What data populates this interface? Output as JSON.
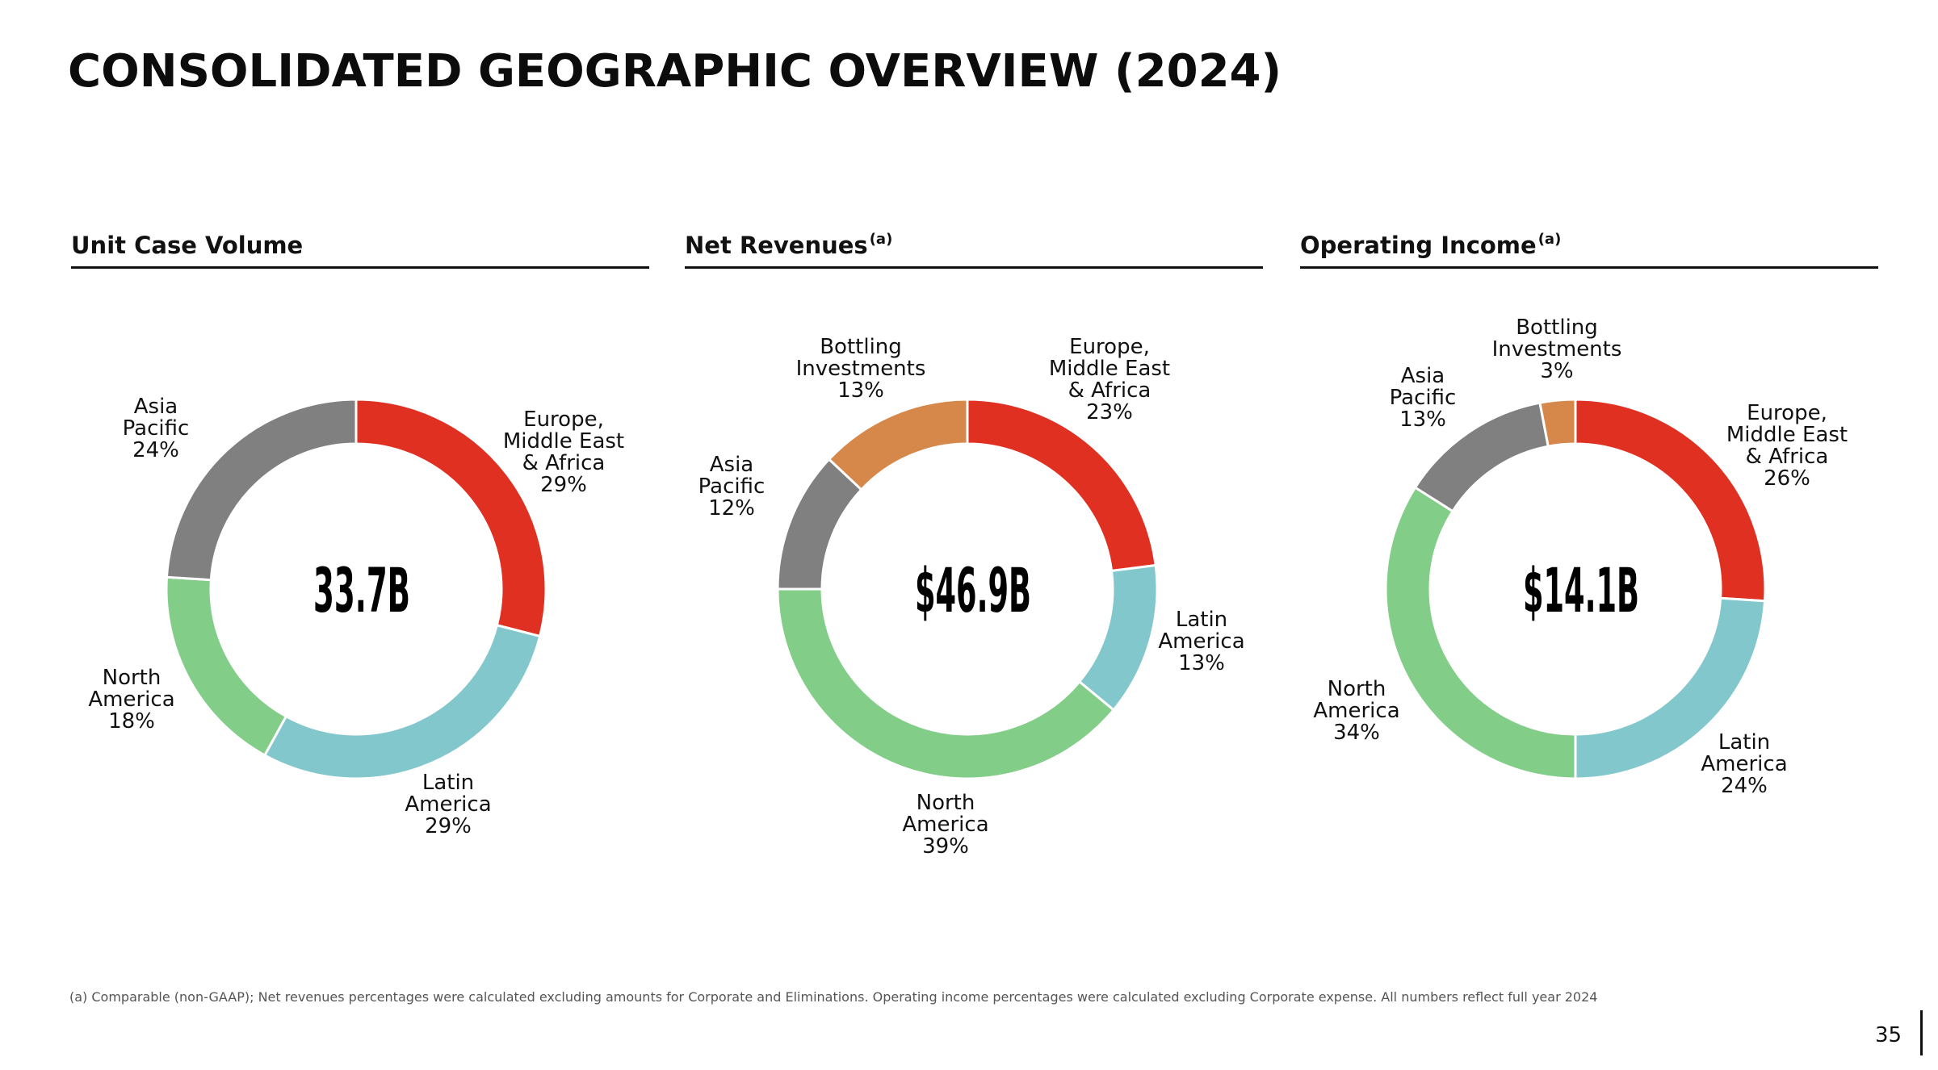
{
  "title": "CONSOLIDATED GEOGRAPHIC OVERVIEW (2024)",
  "colors": {
    "europe_middle_east_africa": "#e03022",
    "latin_america": "#82c7cc",
    "north_america": "#82cd87",
    "asia_pacific": "#808080",
    "bottling_investments": "#d6874a"
  },
  "chart_data": [
    {
      "type": "pie",
      "title": "Unit Case Volume",
      "title_note": "",
      "total": "33.7B",
      "start_angle_deg": 0,
      "slices": [
        {
          "label_lines": [
            "Europe,",
            "Middle East",
            "& Africa"
          ],
          "value": 29,
          "pct": "29%",
          "color": "#e03022"
        },
        {
          "label_lines": [
            "Latin",
            "America"
          ],
          "value": 29,
          "pct": "29%",
          "color": "#82c7cc"
        },
        {
          "label_lines": [
            "North",
            "America"
          ],
          "value": 18,
          "pct": "18%",
          "color": "#82cd87"
        },
        {
          "label_lines": [
            "Asia",
            "Pacific"
          ],
          "value": 24,
          "pct": "24%",
          "color": "#808080"
        }
      ]
    },
    {
      "type": "pie",
      "title": "Net Revenues",
      "title_note": "(a)",
      "total": "$46.9B",
      "start_angle_deg": 0,
      "slices": [
        {
          "label_lines": [
            "Europe,",
            "Middle East",
            "& Africa"
          ],
          "value": 23,
          "pct": "23%",
          "color": "#e03022"
        },
        {
          "label_lines": [
            "Latin",
            "America"
          ],
          "value": 13,
          "pct": "13%",
          "color": "#82c7cc"
        },
        {
          "label_lines": [
            "North",
            "America"
          ],
          "value": 39,
          "pct": "39%",
          "color": "#82cd87"
        },
        {
          "label_lines": [
            "Asia",
            "Pacific"
          ],
          "value": 12,
          "pct": "12%",
          "color": "#808080"
        },
        {
          "label_lines": [
            "Bottling",
            "Investments"
          ],
          "value": 13,
          "pct": "13%",
          "color": "#d6874a"
        }
      ]
    },
    {
      "type": "pie",
      "title": "Operating Income",
      "title_note": "(a)",
      "total": "$14.1B",
      "start_angle_deg": 0,
      "slices": [
        {
          "label_lines": [
            "Europe,",
            "Middle East",
            "& Africa"
          ],
          "value": 26,
          "pct": "26%",
          "color": "#e03022"
        },
        {
          "label_lines": [
            "Latin",
            "America"
          ],
          "value": 24,
          "pct": "24%",
          "color": "#82c7cc"
        },
        {
          "label_lines": [
            "North",
            "America"
          ],
          "value": 34,
          "pct": "34%",
          "color": "#82cd87"
        },
        {
          "label_lines": [
            "Asia",
            "Pacific"
          ],
          "value": 13,
          "pct": "13%",
          "color": "#808080"
        },
        {
          "label_lines": [
            "Bottling",
            "Investments"
          ],
          "value": 3,
          "pct": "3%",
          "color": "#d6874a"
        }
      ]
    }
  ],
  "footnote": "(a) Comparable (non-GAAP); Net revenues percentages were calculated excluding amounts for Corporate and Eliminations. Operating income percentages were calculated excluding Corporate expense. All numbers reflect full year 2024",
  "page_number": "35"
}
